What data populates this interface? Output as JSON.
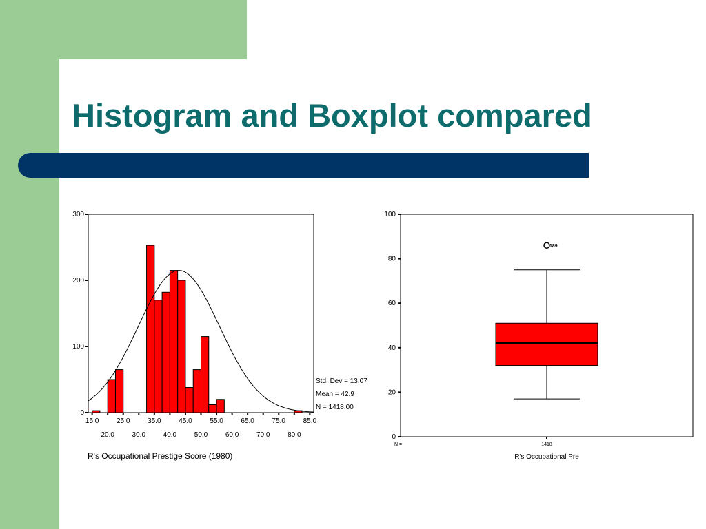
{
  "slide": {
    "title": "Histogram and Boxplot compared",
    "colors": {
      "title": "#0d6b6b",
      "bar": "#003366",
      "accent_green": "#9ccc96",
      "chart_fill": "#ff0000"
    }
  },
  "chart_data": [
    {
      "type": "bar",
      "subtype": "histogram",
      "categories": [
        "15.0",
        "17.5",
        "20.0",
        "22.5",
        "25.0",
        "27.5",
        "30.0",
        "32.5",
        "35.0",
        "37.5",
        "40.0",
        "42.5",
        "45.0",
        "47.5",
        "50.0",
        "52.5",
        "55.0",
        "57.5",
        "60.0",
        "62.5",
        "65.0",
        "67.5",
        "70.0",
        "72.5",
        "75.0",
        "77.5",
        "80.0",
        "82.5",
        "85.0"
      ],
      "bins": [
        {
          "from": 15.0,
          "to": 17.5,
          "value": 3
        },
        {
          "from": 20.0,
          "to": 22.5,
          "value": 50
        },
        {
          "from": 22.5,
          "to": 25.0,
          "value": 65
        },
        {
          "from": 32.5,
          "to": 35.0,
          "value": 253
        },
        {
          "from": 35.0,
          "to": 37.5,
          "value": 170
        },
        {
          "from": 37.5,
          "to": 40.0,
          "value": 182
        },
        {
          "from": 40.0,
          "to": 42.5,
          "value": 215
        },
        {
          "from": 42.5,
          "to": 45.0,
          "value": 200
        },
        {
          "from": 45.0,
          "to": 47.5,
          "value": 38
        },
        {
          "from": 47.5,
          "to": 50.0,
          "value": 65
        },
        {
          "from": 50.0,
          "to": 52.5,
          "value": 115
        },
        {
          "from": 52.5,
          "to": 55.0,
          "value": 12
        },
        {
          "from": 55.0,
          "to": 57.5,
          "value": 20
        },
        {
          "from": 80.0,
          "to": 82.5,
          "value": 3
        }
      ],
      "x_tick_labels_row1": [
        "15.0",
        "25.0",
        "35.0",
        "45.0",
        "55.0",
        "65.0",
        "75.0",
        "85.0"
      ],
      "x_tick_labels_row2": [
        "20.0",
        "30.0",
        "40.0",
        "50.0",
        "60.0",
        "70.0",
        "80.0"
      ],
      "y_ticks": [
        0,
        100,
        200,
        300
      ],
      "ylim": [
        0,
        300
      ],
      "normal_curve": {
        "mean": 42.9,
        "std_dev": 13.07
      },
      "stats": [
        "Std. Dev = 13.07",
        "Mean = 42.9",
        "N = 1418.00"
      ],
      "xlabel": "R's Occupational Prestige Score (1980)",
      "ylabel": ""
    },
    {
      "type": "boxplot",
      "category": "R's Occupational Pre",
      "n_label": "N =",
      "n_value": "1418",
      "min": 17,
      "q1": 32,
      "median": 42,
      "q3": 51,
      "max": 75,
      "outliers": [
        {
          "value": 86,
          "label": "189"
        }
      ],
      "y_ticks": [
        0,
        20,
        40,
        60,
        80,
        100
      ],
      "ylim": [
        0,
        100
      ]
    }
  ]
}
